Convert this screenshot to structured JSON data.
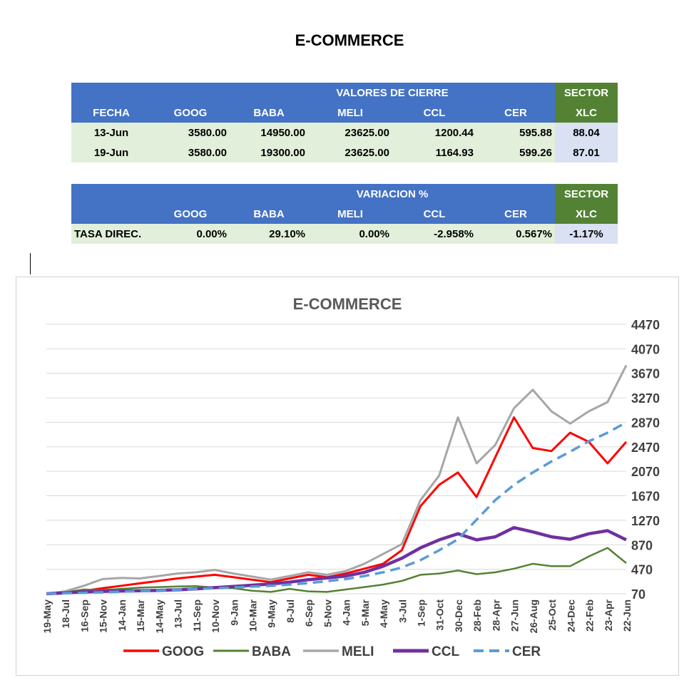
{
  "page_title": "E-COMMERCE",
  "table_cierre": {
    "group_header": "VALORES DE CIERRE",
    "sector_header": "SECTOR",
    "columns": [
      "FECHA",
      "GOOG",
      "BABA",
      "MELI",
      "CCL",
      "CER",
      "XLC"
    ],
    "rows": [
      [
        "13-Jun",
        "3580.00",
        "14950.00",
        "23625.00",
        "1200.44",
        "595.88",
        "88.04"
      ],
      [
        "19-Jun",
        "3580.00",
        "19300.00",
        "23625.00",
        "1164.93",
        "599.26",
        "87.01"
      ]
    ]
  },
  "table_variacion": {
    "group_header": "VARIACION %",
    "sector_header": "SECTOR",
    "columns": [
      "",
      "GOOG",
      "BABA",
      "MELI",
      "CCL",
      "CER",
      "XLC"
    ],
    "row_label": "TASA DIREC.",
    "values": [
      "0.00%",
      "29.10%",
      "0.00%",
      "-2.958%",
      "0.567%",
      "-1.17%"
    ]
  },
  "chart_data": {
    "type": "line",
    "title": "E-COMMERCE",
    "xlabel": "",
    "ylabel": "",
    "ylim": [
      70,
      4470
    ],
    "yticks": [
      4470,
      4070,
      3670,
      3270,
      2870,
      2470,
      2070,
      1670,
      1270,
      870,
      470,
      70
    ],
    "grid": true,
    "legend_position": "bottom",
    "categories": [
      "19-May",
      "18-Jul",
      "16-Sep",
      "15-Nov",
      "14-Jan",
      "15-Mar",
      "14-May",
      "13-Jul",
      "11-Sep",
      "10-Nov",
      "9-Jan",
      "10-Mar",
      "9-May",
      "8-Jul",
      "6-Sep",
      "5-Nov",
      "4-Jan",
      "5-Mar",
      "4-May",
      "3-Jul",
      "1-Sep",
      "31-Oct",
      "30-Dec",
      "28-Feb",
      "28-Apr",
      "27-Jun",
      "26-Aug",
      "25-Oct",
      "24-Dec",
      "22-Feb",
      "23-Apr",
      "22-Jun"
    ],
    "series": [
      {
        "name": "GOOG",
        "color": "#ff0000",
        "dash": false,
        "width": 3,
        "values": [
          70,
          95,
          120,
          160,
          200,
          240,
          280,
          320,
          350,
          380,
          340,
          300,
          260,
          320,
          380,
          340,
          400,
          480,
          560,
          780,
          1500,
          1850,
          2050,
          1650,
          2300,
          2950,
          2450,
          2400,
          2700,
          2550,
          2200,
          2550
        ]
      },
      {
        "name": "BABA",
        "color": "#548235",
        "dash": false,
        "width": 2.5,
        "values": [
          70,
          95,
          140,
          130,
          150,
          170,
          180,
          190,
          195,
          170,
          160,
          120,
          100,
          150,
          110,
          100,
          140,
          180,
          220,
          280,
          380,
          400,
          450,
          390,
          420,
          480,
          560,
          520,
          520,
          680,
          820,
          570
        ]
      },
      {
        "name": "MELI",
        "color": "#a6a6a6",
        "dash": false,
        "width": 3,
        "values": [
          70,
          110,
          200,
          310,
          330,
          320,
          360,
          400,
          420,
          460,
          400,
          350,
          300,
          360,
          420,
          380,
          440,
          560,
          720,
          880,
          1600,
          2000,
          2950,
          2200,
          2500,
          3100,
          3400,
          3050,
          2850,
          3050,
          3200,
          3800
        ]
      },
      {
        "name": "CCL",
        "color": "#7030a0",
        "dash": false,
        "width": 4.5,
        "values": [
          70,
          85,
          100,
          110,
          115,
          120,
          125,
          135,
          150,
          170,
          190,
          210,
          230,
          260,
          300,
          330,
          360,
          420,
          520,
          650,
          820,
          950,
          1050,
          950,
          1000,
          1150,
          1080,
          1000,
          960,
          1050,
          1100,
          950
        ]
      },
      {
        "name": "CER",
        "color": "#5b9bd5",
        "dash": true,
        "width": 3.5,
        "values": [
          70,
          78,
          86,
          95,
          105,
          115,
          125,
          136,
          148,
          160,
          172,
          186,
          200,
          220,
          245,
          275,
          310,
          360,
          420,
          500,
          620,
          780,
          960,
          1280,
          1600,
          1850,
          2050,
          2230,
          2390,
          2560,
          2700,
          2870
        ]
      }
    ]
  }
}
